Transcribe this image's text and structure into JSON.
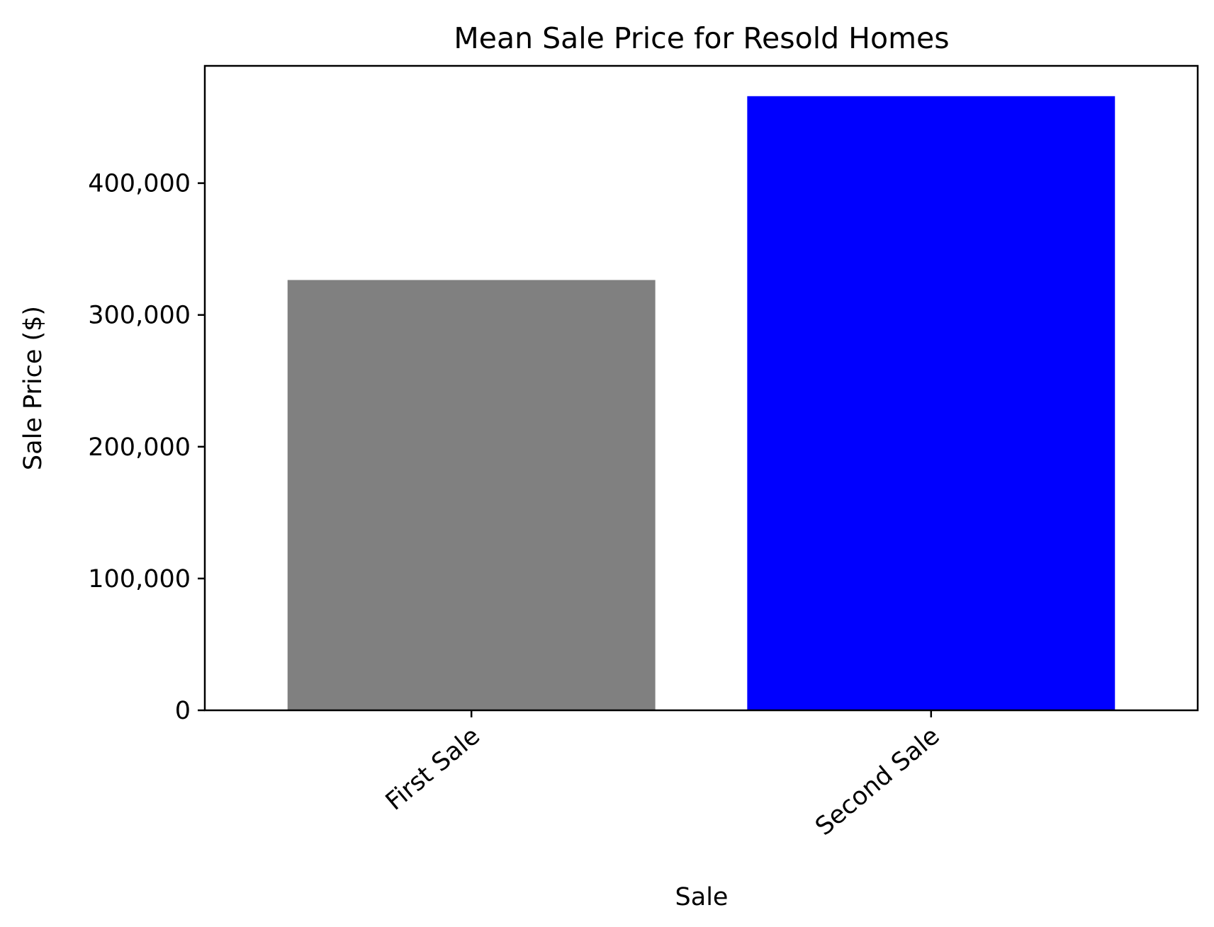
{
  "chart_data": {
    "type": "bar",
    "title": "Mean Sale Price for Resold Homes",
    "xlabel": "Sale",
    "ylabel": "Sale Price ($)",
    "categories": [
      "First Sale",
      "Second Sale"
    ],
    "values": [
      326500,
      466000
    ],
    "colors": [
      "#808080",
      "#0000ff"
    ],
    "ylim": [
      0,
      489000
    ],
    "yticks": [
      0,
      100000,
      200000,
      300000,
      400000
    ],
    "ytick_labels": [
      "0",
      "100,000",
      "200,000",
      "300,000",
      "400,000"
    ],
    "grid": false,
    "legend": false
  }
}
